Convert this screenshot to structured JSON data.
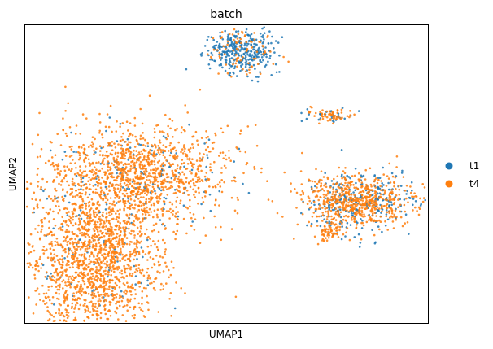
{
  "chart_data": {
    "type": "scatter",
    "title": "batch",
    "xlabel": "UMAP1",
    "ylabel": "UMAP2",
    "xticks": [],
    "yticks": [],
    "grid": false,
    "legend_position": "right",
    "series": [
      {
        "name": "t1",
        "color": "#1f77b4"
      },
      {
        "name": "t4",
        "color": "#ff7f0e"
      }
    ],
    "clusters": [
      {
        "cx": -1.6,
        "cy": 0.9,
        "sx": 1.0,
        "sy": 0.55,
        "n": 1300,
        "t1_fraction": 0.12
      },
      {
        "cx": -2.5,
        "cy": -1.0,
        "sx": 0.7,
        "sy": 0.9,
        "n": 1700,
        "t1_fraction": 0.05
      },
      {
        "cx": 0.6,
        "cy": 3.6,
        "sx": 0.35,
        "sy": 0.25,
        "n": 420,
        "t1_fraction": 0.75
      },
      {
        "cx": 2.5,
        "cy": 2.2,
        "sx": 0.25,
        "sy": 0.07,
        "n": 90,
        "t1_fraction": 0.35
      },
      {
        "cx": 3.1,
        "cy": 0.3,
        "sx": 0.6,
        "sy": 0.3,
        "n": 900,
        "t1_fraction": 0.3
      },
      {
        "cx": 2.5,
        "cy": -0.4,
        "sx": 0.15,
        "sy": 0.12,
        "n": 60,
        "t1_fraction": 0.1
      }
    ]
  }
}
